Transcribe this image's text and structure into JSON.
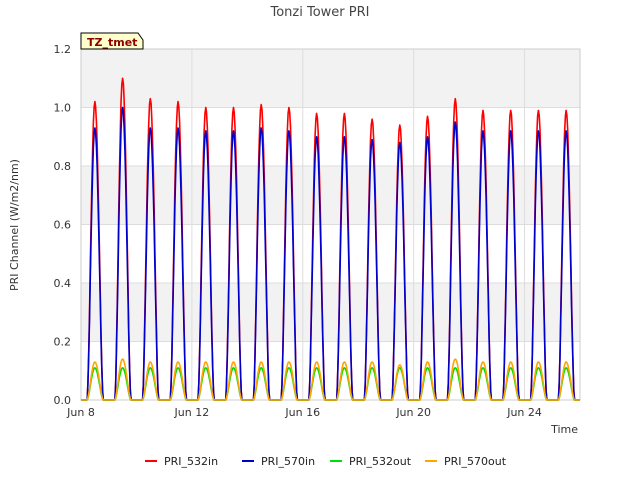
{
  "chart_data": {
    "type": "line",
    "title": "Tonzi Tower PRI",
    "xlabel": "Time",
    "ylabel": "PRI Channel (W/m2/nm)",
    "badge": "TZ_tmet",
    "ylim": [
      0.0,
      1.2
    ],
    "yticks": [
      "0.0",
      "0.2",
      "0.4",
      "0.6",
      "0.8",
      "1.0",
      "1.2"
    ],
    "xlim": [
      "2023-06-08",
      "2023-06-26"
    ],
    "xticks": [
      {
        "date": "2023-06-08",
        "label": "Jun 8"
      },
      {
        "date": "2023-06-12",
        "label": "Jun 12"
      },
      {
        "date": "2023-06-16",
        "label": "Jun 16"
      },
      {
        "date": "2023-06-20",
        "label": "Jun 20"
      },
      {
        "date": "2023-06-24",
        "label": "Jun 24"
      }
    ],
    "days": [
      "2023-06-08",
      "2023-06-09",
      "2023-06-10",
      "2023-06-11",
      "2023-06-12",
      "2023-06-13",
      "2023-06-14",
      "2023-06-15",
      "2023-06-16",
      "2023-06-17",
      "2023-06-18",
      "2023-06-19",
      "2023-06-20",
      "2023-06-21",
      "2023-06-22",
      "2023-06-23",
      "2023-06-24",
      "2023-06-25"
    ],
    "series": [
      {
        "name": "PRI_532in",
        "color": "#ff0000",
        "daily_peak": [
          1.02,
          1.1,
          1.03,
          1.02,
          1.0,
          1.0,
          1.01,
          1.0,
          0.98,
          0.98,
          0.96,
          0.94,
          0.97,
          1.03,
          0.99,
          0.99,
          0.99,
          0.99
        ]
      },
      {
        "name": "PRI_570in",
        "color": "#0000cc",
        "daily_peak": [
          0.93,
          1.0,
          0.93,
          0.93,
          0.92,
          0.92,
          0.93,
          0.92,
          0.9,
          0.9,
          0.89,
          0.88,
          0.9,
          0.95,
          0.92,
          0.92,
          0.92,
          0.92
        ]
      },
      {
        "name": "PRI_532out",
        "color": "#00dd00",
        "daily_peak": [
          0.11,
          0.11,
          0.11,
          0.11,
          0.11,
          0.11,
          0.11,
          0.11,
          0.11,
          0.11,
          0.11,
          0.11,
          0.11,
          0.11,
          0.11,
          0.11,
          0.11,
          0.11
        ]
      },
      {
        "name": "PRI_570out",
        "color": "#ffa500",
        "daily_peak": [
          0.13,
          0.14,
          0.13,
          0.13,
          0.13,
          0.13,
          0.13,
          0.13,
          0.13,
          0.13,
          0.13,
          0.12,
          0.13,
          0.14,
          0.13,
          0.13,
          0.13,
          0.13
        ]
      }
    ],
    "grid": true,
    "legend_position": "bottom"
  }
}
